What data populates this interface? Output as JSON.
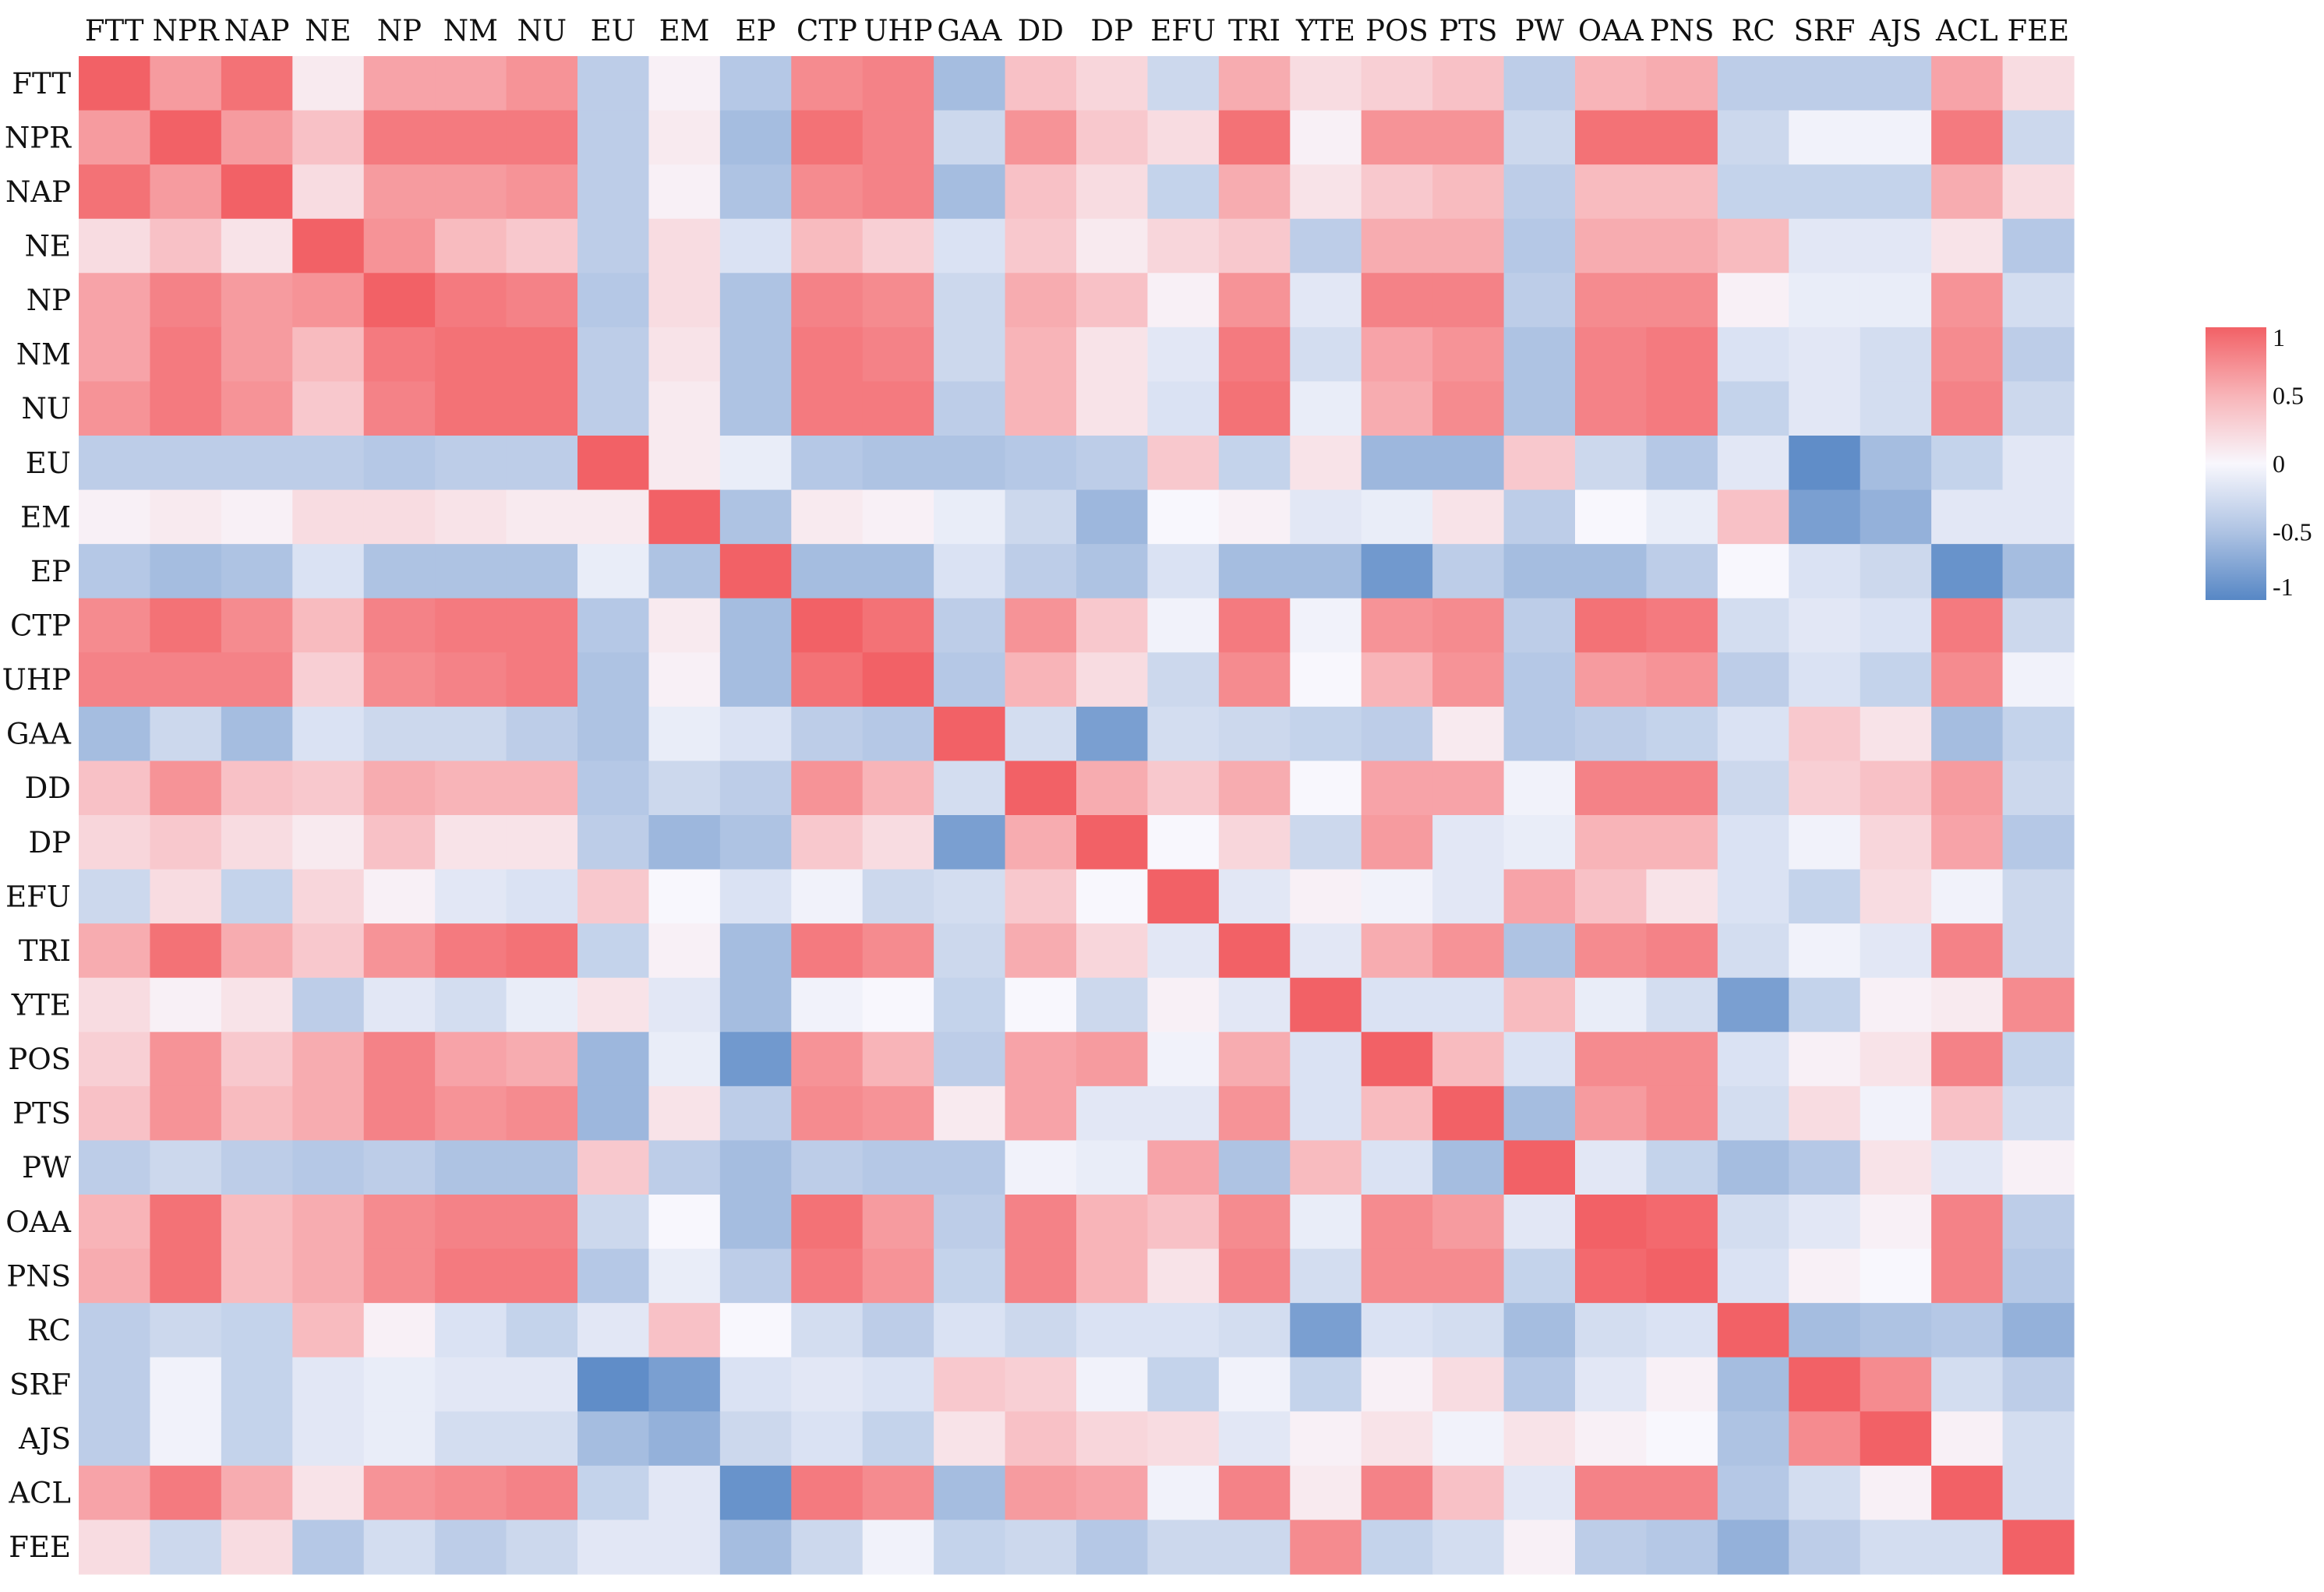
{
  "chart_data": {
    "type": "heatmap",
    "title": "",
    "xlabel": "",
    "ylabel": "",
    "variables": [
      "FTT",
      "NPR",
      "NAP",
      "NE",
      "NP",
      "NM",
      "NU",
      "EU",
      "EM",
      "EP",
      "CTP",
      "UHP",
      "GAA",
      "DD",
      "DP",
      "EFU",
      "TRI",
      "YTE",
      "POS",
      "PTS",
      "PW",
      "OAA",
      "PNS",
      "RC",
      "SRF",
      "AJS",
      "ACL",
      "FEE"
    ],
    "value_range": [
      -1,
      1
    ],
    "colorscale": [
      {
        "value": -1,
        "color": "#5787c5"
      },
      {
        "value": -0.5,
        "color": "#aec3e3"
      },
      {
        "value": 0,
        "color": "#f8f7fd"
      },
      {
        "value": 0.5,
        "color": "#f8b4b8"
      },
      {
        "value": 1,
        "color": "#f26166"
      }
    ],
    "colorbar_ticks": [
      "1",
      "0.5",
      "0",
      "-0.5",
      "-1"
    ],
    "matrix": [
      [
        1.0,
        0.65,
        0.9,
        0.1,
        0.6,
        0.6,
        0.7,
        -0.4,
        0.05,
        -0.45,
        0.75,
        0.8,
        -0.55,
        0.4,
        0.25,
        -0.3,
        0.55,
        0.2,
        0.3,
        0.4,
        -0.4,
        0.5,
        0.55,
        -0.4,
        -0.4,
        -0.4,
        0.6,
        0.2
      ],
      [
        0.65,
        1.0,
        0.65,
        0.4,
        0.85,
        0.85,
        0.85,
        -0.4,
        0.1,
        -0.55,
        0.9,
        0.8,
        -0.3,
        0.7,
        0.35,
        0.2,
        0.9,
        0.05,
        0.7,
        0.7,
        -0.3,
        0.9,
        0.9,
        -0.3,
        -0.05,
        -0.05,
        0.85,
        -0.3
      ],
      [
        0.9,
        0.65,
        1.0,
        0.2,
        0.65,
        0.65,
        0.7,
        -0.4,
        0.05,
        -0.5,
        0.75,
        0.8,
        -0.55,
        0.4,
        0.2,
        -0.35,
        0.55,
        0.15,
        0.35,
        0.45,
        -0.4,
        0.45,
        0.45,
        -0.35,
        -0.35,
        -0.35,
        0.55,
        0.2
      ],
      [
        0.2,
        0.4,
        0.15,
        1.0,
        0.7,
        0.45,
        0.35,
        -0.4,
        0.2,
        -0.2,
        0.45,
        0.3,
        -0.2,
        0.35,
        0.1,
        0.25,
        0.35,
        -0.4,
        0.55,
        0.55,
        -0.45,
        0.55,
        0.55,
        0.45,
        -0.15,
        -0.15,
        0.15,
        -0.45
      ],
      [
        0.6,
        0.8,
        0.65,
        0.7,
        1.0,
        0.85,
        0.8,
        -0.45,
        0.2,
        -0.5,
        0.8,
        0.75,
        -0.3,
        0.55,
        0.4,
        0.05,
        0.7,
        -0.15,
        0.8,
        0.8,
        -0.4,
        0.75,
        0.75,
        0.05,
        -0.1,
        -0.1,
        0.7,
        -0.25
      ],
      [
        0.6,
        0.85,
        0.65,
        0.45,
        0.85,
        0.9,
        0.9,
        -0.4,
        0.15,
        -0.5,
        0.85,
        0.8,
        -0.3,
        0.5,
        0.15,
        -0.15,
        0.85,
        -0.25,
        0.6,
        0.7,
        -0.5,
        0.8,
        0.85,
        -0.2,
        -0.15,
        -0.25,
        0.75,
        -0.4
      ],
      [
        0.7,
        0.85,
        0.7,
        0.35,
        0.8,
        0.9,
        0.9,
        -0.4,
        0.1,
        -0.5,
        0.85,
        0.85,
        -0.4,
        0.5,
        0.15,
        -0.2,
        0.9,
        -0.1,
        0.55,
        0.75,
        -0.5,
        0.8,
        0.85,
        -0.35,
        -0.15,
        -0.25,
        0.8,
        -0.3
      ],
      [
        -0.4,
        -0.4,
        -0.4,
        -0.4,
        -0.45,
        -0.4,
        -0.4,
        1.0,
        0.1,
        -0.1,
        -0.45,
        -0.5,
        -0.5,
        -0.45,
        -0.4,
        0.35,
        -0.35,
        0.15,
        -0.6,
        -0.6,
        0.35,
        -0.3,
        -0.45,
        -0.15,
        -0.95,
        -0.55,
        -0.35,
        -0.15
      ],
      [
        0.05,
        0.1,
        0.05,
        0.2,
        0.2,
        0.15,
        0.1,
        0.1,
        1.0,
        -0.5,
        0.1,
        0.05,
        -0.1,
        -0.3,
        -0.6,
        0.0,
        0.05,
        -0.15,
        -0.1,
        0.15,
        -0.4,
        0.0,
        -0.1,
        0.4,
        -0.8,
        -0.65,
        -0.15,
        -0.15
      ],
      [
        -0.45,
        -0.55,
        -0.5,
        -0.2,
        -0.5,
        -0.5,
        -0.5,
        -0.1,
        -0.5,
        1.0,
        -0.55,
        -0.55,
        -0.2,
        -0.4,
        -0.5,
        -0.2,
        -0.55,
        -0.55,
        -0.85,
        -0.4,
        -0.55,
        -0.55,
        -0.4,
        0.0,
        -0.2,
        -0.3,
        -0.9,
        -0.55
      ],
      [
        0.75,
        0.9,
        0.75,
        0.45,
        0.8,
        0.85,
        0.85,
        -0.45,
        0.1,
        -0.55,
        1.0,
        0.9,
        -0.4,
        0.7,
        0.35,
        -0.05,
        0.85,
        -0.05,
        0.7,
        0.75,
        -0.4,
        0.9,
        0.85,
        -0.25,
        -0.15,
        -0.2,
        0.85,
        -0.3
      ],
      [
        0.8,
        0.8,
        0.8,
        0.3,
        0.75,
        0.8,
        0.85,
        -0.5,
        0.05,
        -0.55,
        0.9,
        1.0,
        -0.45,
        0.5,
        0.2,
        -0.3,
        0.75,
        0.0,
        0.5,
        0.7,
        -0.45,
        0.65,
        0.7,
        -0.4,
        -0.2,
        -0.35,
        0.75,
        -0.05
      ],
      [
        -0.55,
        -0.3,
        -0.55,
        -0.2,
        -0.3,
        -0.3,
        -0.4,
        -0.5,
        -0.1,
        -0.2,
        -0.4,
        -0.45,
        1.0,
        -0.25,
        -0.8,
        -0.25,
        -0.3,
        -0.35,
        -0.4,
        0.1,
        -0.45,
        -0.4,
        -0.35,
        -0.2,
        0.35,
        0.15,
        -0.55,
        -0.35
      ],
      [
        0.4,
        0.7,
        0.4,
        0.35,
        0.55,
        0.5,
        0.5,
        -0.45,
        -0.3,
        -0.4,
        0.7,
        0.5,
        -0.25,
        1.0,
        0.55,
        0.35,
        0.55,
        0.0,
        0.6,
        0.6,
        -0.05,
        0.8,
        0.8,
        -0.3,
        0.3,
        0.4,
        0.65,
        -0.3
      ],
      [
        0.25,
        0.35,
        0.2,
        0.1,
        0.4,
        0.15,
        0.15,
        -0.4,
        -0.6,
        -0.5,
        0.35,
        0.2,
        -0.8,
        0.55,
        1.0,
        0.0,
        0.25,
        -0.3,
        0.65,
        -0.15,
        -0.1,
        0.5,
        0.5,
        -0.2,
        -0.05,
        0.25,
        0.6,
        -0.45
      ],
      [
        -0.3,
        0.2,
        -0.35,
        0.25,
        0.05,
        -0.15,
        -0.2,
        0.35,
        0.0,
        -0.2,
        -0.05,
        -0.3,
        -0.25,
        0.35,
        0.0,
        1.0,
        -0.15,
        0.05,
        -0.05,
        -0.15,
        0.6,
        0.4,
        0.15,
        -0.2,
        -0.35,
        0.2,
        -0.05,
        -0.3
      ],
      [
        0.55,
        0.9,
        0.55,
        0.35,
        0.7,
        0.85,
        0.9,
        -0.35,
        0.05,
        -0.55,
        0.85,
        0.75,
        -0.3,
        0.55,
        0.25,
        -0.15,
        1.0,
        -0.15,
        0.55,
        0.7,
        -0.5,
        0.75,
        0.8,
        -0.25,
        -0.05,
        -0.15,
        0.8,
        -0.3
      ],
      [
        0.2,
        0.05,
        0.15,
        -0.4,
        -0.15,
        -0.25,
        -0.1,
        0.15,
        -0.15,
        -0.55,
        -0.05,
        0.0,
        -0.35,
        0.0,
        -0.3,
        0.05,
        -0.15,
        1.0,
        -0.2,
        -0.2,
        0.45,
        -0.1,
        -0.25,
        -0.8,
        -0.35,
        0.05,
        0.1,
        0.75
      ],
      [
        0.3,
        0.7,
        0.35,
        0.55,
        0.8,
        0.6,
        0.55,
        -0.6,
        -0.1,
        -0.85,
        0.7,
        0.5,
        -0.4,
        0.6,
        0.65,
        -0.05,
        0.55,
        -0.2,
        1.0,
        0.45,
        -0.2,
        0.75,
        0.75,
        -0.2,
        0.05,
        0.15,
        0.8,
        -0.35
      ],
      [
        0.4,
        0.7,
        0.45,
        0.55,
        0.8,
        0.7,
        0.75,
        -0.6,
        0.15,
        -0.4,
        0.75,
        0.7,
        0.1,
        0.6,
        -0.15,
        -0.15,
        0.7,
        -0.2,
        0.45,
        1.0,
        -0.55,
        0.65,
        0.75,
        -0.25,
        0.2,
        -0.05,
        0.4,
        -0.25
      ],
      [
        -0.4,
        -0.3,
        -0.4,
        -0.45,
        -0.4,
        -0.5,
        -0.5,
        0.35,
        -0.4,
        -0.55,
        -0.4,
        -0.45,
        -0.45,
        -0.05,
        -0.1,
        0.6,
        -0.5,
        0.45,
        -0.2,
        -0.55,
        1.0,
        -0.15,
        -0.35,
        -0.55,
        -0.45,
        0.15,
        -0.15,
        0.05
      ],
      [
        0.5,
        0.9,
        0.45,
        0.55,
        0.75,
        0.8,
        0.8,
        -0.3,
        0.0,
        -0.55,
        0.9,
        0.65,
        -0.4,
        0.8,
        0.5,
        0.4,
        0.75,
        -0.1,
        0.75,
        0.65,
        -0.15,
        1.0,
        0.95,
        -0.25,
        -0.15,
        0.05,
        0.8,
        -0.4
      ],
      [
        0.55,
        0.9,
        0.45,
        0.55,
        0.75,
        0.85,
        0.85,
        -0.45,
        -0.1,
        -0.4,
        0.85,
        0.7,
        -0.35,
        0.8,
        0.5,
        0.15,
        0.8,
        -0.25,
        0.75,
        0.75,
        -0.35,
        0.95,
        1.0,
        -0.2,
        0.05,
        0.0,
        0.8,
        -0.45
      ],
      [
        -0.4,
        -0.3,
        -0.35,
        0.45,
        0.05,
        -0.2,
        -0.35,
        -0.15,
        0.4,
        0.0,
        -0.25,
        -0.4,
        -0.2,
        -0.3,
        -0.2,
        -0.2,
        -0.25,
        -0.8,
        -0.2,
        -0.25,
        -0.55,
        -0.25,
        -0.2,
        1.0,
        -0.55,
        -0.5,
        -0.45,
        -0.65
      ],
      [
        -0.4,
        -0.05,
        -0.35,
        -0.15,
        -0.1,
        -0.15,
        -0.15,
        -0.95,
        -0.8,
        -0.2,
        -0.15,
        -0.2,
        0.35,
        0.3,
        -0.05,
        -0.35,
        -0.05,
        -0.35,
        0.05,
        0.2,
        -0.45,
        -0.15,
        0.05,
        -0.55,
        1.0,
        0.75,
        -0.25,
        -0.4
      ],
      [
        -0.4,
        -0.05,
        -0.35,
        -0.15,
        -0.1,
        -0.25,
        -0.25,
        -0.55,
        -0.65,
        -0.3,
        -0.2,
        -0.35,
        0.15,
        0.4,
        0.25,
        0.2,
        -0.15,
        0.05,
        0.15,
        -0.05,
        0.15,
        0.05,
        0.0,
        -0.5,
        0.75,
        1.0,
        0.05,
        -0.25
      ],
      [
        0.6,
        0.85,
        0.55,
        0.15,
        0.7,
        0.75,
        0.8,
        -0.35,
        -0.15,
        -0.9,
        0.85,
        0.75,
        -0.55,
        0.65,
        0.6,
        -0.05,
        0.8,
        0.1,
        0.8,
        0.4,
        -0.15,
        0.8,
        0.8,
        -0.45,
        -0.25,
        0.05,
        1.0,
        -0.25
      ],
      [
        0.2,
        -0.3,
        0.2,
        -0.45,
        -0.25,
        -0.4,
        -0.3,
        -0.15,
        -0.15,
        -0.55,
        -0.3,
        -0.05,
        -0.35,
        -0.3,
        -0.45,
        -0.3,
        -0.3,
        0.75,
        -0.35,
        -0.25,
        0.05,
        -0.4,
        -0.45,
        -0.65,
        -0.4,
        -0.25,
        -0.25,
        1.0
      ]
    ]
  }
}
